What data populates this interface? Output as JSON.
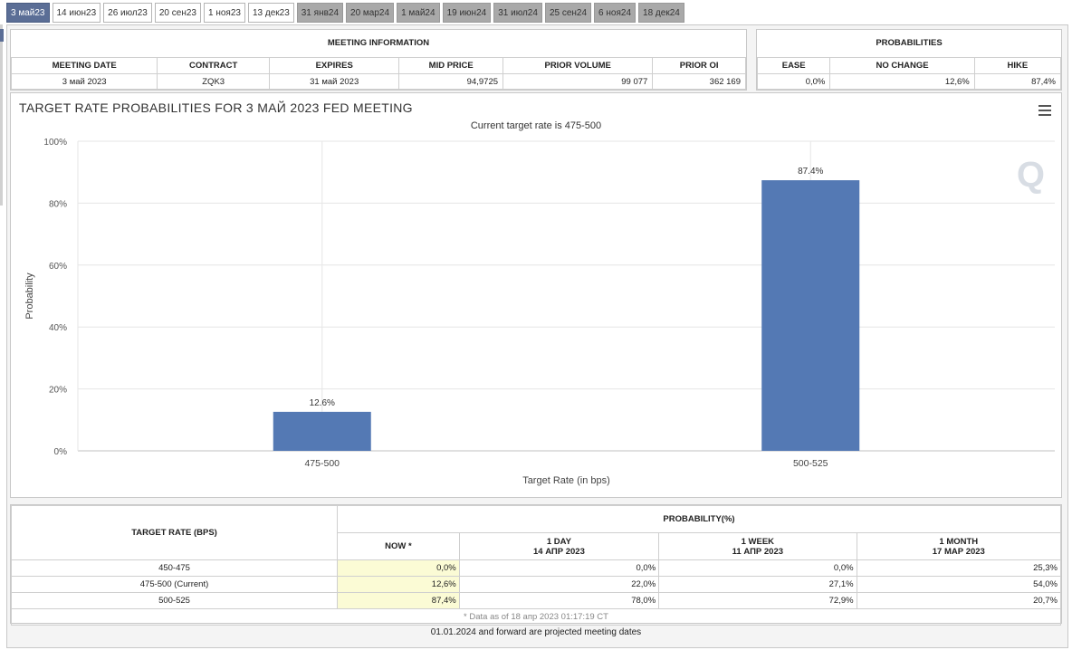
{
  "tabs": [
    {
      "label": "3 май23",
      "state": "active"
    },
    {
      "label": "14 июн23",
      "state": "normal"
    },
    {
      "label": "26 июл23",
      "state": "normal"
    },
    {
      "label": "20 сен23",
      "state": "normal"
    },
    {
      "label": "1 ноя23",
      "state": "normal"
    },
    {
      "label": "13 дек23",
      "state": "normal"
    },
    {
      "label": "31 янв24",
      "state": "future"
    },
    {
      "label": "20 мар24",
      "state": "future"
    },
    {
      "label": "1 май24",
      "state": "future"
    },
    {
      "label": "19 июн24",
      "state": "future"
    },
    {
      "label": "31 июл24",
      "state": "future"
    },
    {
      "label": "25 сен24",
      "state": "future"
    },
    {
      "label": "6 ноя24",
      "state": "future"
    },
    {
      "label": "18 дек24",
      "state": "future"
    }
  ],
  "meeting_info": {
    "title": "MEETING INFORMATION",
    "headers": [
      "MEETING DATE",
      "CONTRACT",
      "EXPIRES",
      "MID PRICE",
      "PRIOR VOLUME",
      "PRIOR OI"
    ],
    "values": [
      "3 май 2023",
      "ZQK3",
      "31 май 2023",
      "94,9725",
      "99 077",
      "362 169"
    ]
  },
  "probabilities": {
    "title": "PROBABILITIES",
    "headers": [
      "EASE",
      "NO CHANGE",
      "HIKE"
    ],
    "values": [
      "0,0%",
      "12,6%",
      "87,4%"
    ]
  },
  "chart": {
    "title": "TARGET RATE PROBABILITIES FOR 3 МАЙ 2023 FED MEETING",
    "subtitle": "Current target rate is 475-500",
    "menu_icon": "hamburger-icon",
    "logo": "Q"
  },
  "chart_data": {
    "type": "bar",
    "categories": [
      "475-500",
      "500-525"
    ],
    "values": [
      12.6,
      87.4
    ],
    "data_labels": [
      "12.6%",
      "87.4%"
    ],
    "xlabel": "Target Rate (in bps)",
    "ylabel": "Probability",
    "ylim": [
      0,
      100
    ],
    "yticks": [
      0,
      20,
      40,
      60,
      80,
      100
    ],
    "ytick_labels": [
      "0%",
      "20%",
      "40%",
      "60%",
      "80%",
      "100%"
    ],
    "grid": true,
    "bar_color": "#5479b4"
  },
  "prob_table": {
    "col1_header": "TARGET RATE (BPS)",
    "group_header": "PROBABILITY(%)",
    "sub_headers": [
      {
        "line1": "NOW *",
        "line2": ""
      },
      {
        "line1": "1 DAY",
        "line2": "14 АПР 2023"
      },
      {
        "line1": "1 WEEK",
        "line2": "11 АПР 2023"
      },
      {
        "line1": "1 MONTH",
        "line2": "17 МАР 2023"
      }
    ],
    "rows": [
      {
        "rate": "450-475",
        "now": "0,0%",
        "day": "0,0%",
        "week": "0,0%",
        "month": "25,3%"
      },
      {
        "rate": "475-500 (Current)",
        "now": "12,6%",
        "day": "22,0%",
        "week": "27,1%",
        "month": "54,0%"
      },
      {
        "rate": "500-525",
        "now": "87,4%",
        "day": "78,0%",
        "week": "72,9%",
        "month": "20,7%"
      }
    ],
    "note": "* Data as of 18 апр 2023 01:17:19 CT"
  },
  "footer": "01.01.2024 and forward are projected meeting dates"
}
